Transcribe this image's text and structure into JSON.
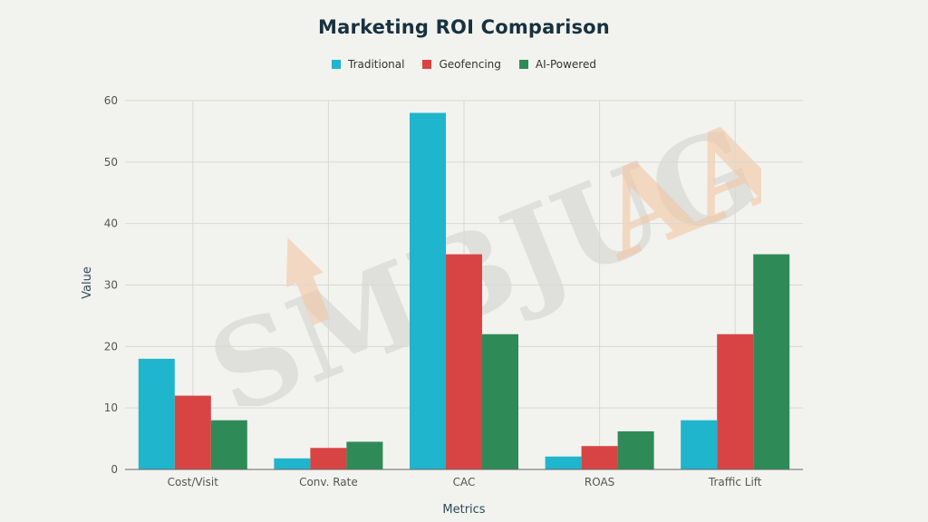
{
  "chart_data": {
    "type": "bar",
    "title": "Marketing ROI Comparison",
    "xlabel": "Metrics",
    "ylabel": "Value",
    "ylim": [
      0,
      60
    ],
    "yticks": [
      0,
      10,
      20,
      30,
      40,
      50,
      60
    ],
    "grid": true,
    "legend_position": "top-center",
    "categories": [
      "Cost/Visit",
      "Conv. Rate",
      "CAC",
      "ROAS",
      "Traffic Lift"
    ],
    "series": [
      {
        "name": "Traditional",
        "color": "#1fb5cc",
        "values": [
          18,
          1.8,
          58,
          2.1,
          8
        ]
      },
      {
        "name": "Geofencing",
        "color": "#d84444",
        "values": [
          12,
          3.5,
          35,
          3.8,
          22
        ]
      },
      {
        "name": "AI-Powered",
        "color": "#2e8b57",
        "values": [
          8,
          4.5,
          22,
          6.2,
          35
        ]
      }
    ]
  },
  "watermark": {
    "text": "SMBJUGAAD",
    "colors": [
      "#cfcfcf",
      "#f5c9a8"
    ]
  }
}
